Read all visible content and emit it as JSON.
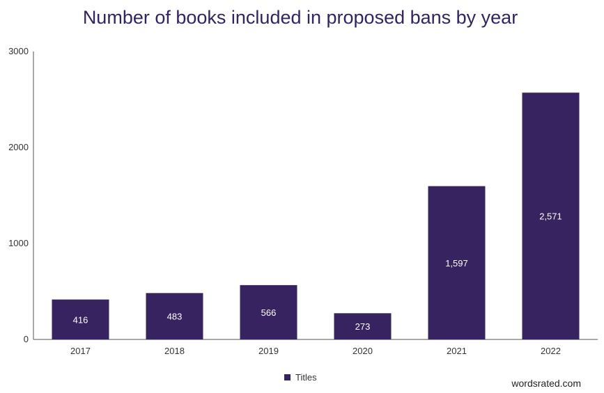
{
  "chart_data": {
    "type": "bar",
    "title": "Number of books included in proposed bans by year",
    "xlabel": "",
    "ylabel": "",
    "categories": [
      "2017",
      "2018",
      "2019",
      "2020",
      "2021",
      "2022"
    ],
    "series": [
      {
        "name": "Titles",
        "values": [
          416,
          483,
          566,
          273,
          1597,
          2571
        ],
        "labels": [
          "416",
          "483",
          "566",
          "273",
          "1,597",
          "2,571"
        ],
        "color": "#36235f"
      }
    ],
    "ylim": [
      0,
      3000
    ],
    "yticks": [
      "0",
      "1000",
      "2000",
      "3000"
    ],
    "grid": false,
    "legend_position": "bottom-center"
  },
  "source": "wordsrated.com"
}
